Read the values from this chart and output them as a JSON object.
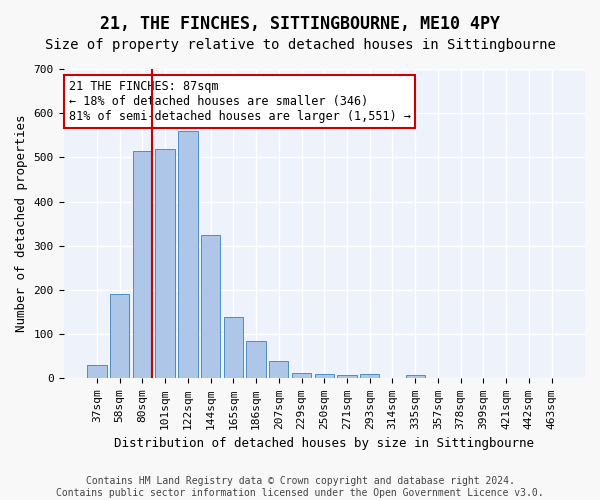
{
  "title": "21, THE FINCHES, SITTINGBOURNE, ME10 4PY",
  "subtitle": "Size of property relative to detached houses in Sittingbourne",
  "xlabel": "Distribution of detached houses by size in Sittingbourne",
  "ylabel": "Number of detached properties",
  "footer_line1": "Contains HM Land Registry data © Crown copyright and database right 2024.",
  "footer_line2": "Contains public sector information licensed under the Open Government Licence v3.0.",
  "bar_labels": [
    "37sqm",
    "58sqm",
    "80sqm",
    "101sqm",
    "122sqm",
    "144sqm",
    "165sqm",
    "186sqm",
    "207sqm",
    "229sqm",
    "250sqm",
    "271sqm",
    "293sqm",
    "314sqm",
    "335sqm",
    "357sqm",
    "378sqm",
    "399sqm",
    "421sqm",
    "442sqm",
    "463sqm"
  ],
  "bar_values": [
    30,
    190,
    515,
    520,
    560,
    325,
    140,
    85,
    40,
    13,
    10,
    8,
    10,
    0,
    7,
    0,
    0,
    0,
    0,
    0,
    0
  ],
  "bar_color": "#aec6e8",
  "bar_edge_color": "#4a90c4",
  "background_color": "#eef3fb",
  "grid_color": "#ffffff",
  "vline_x": 2.42,
  "vline_color": "#cc0000",
  "annotation_text": "21 THE FINCHES: 87sqm\n← 18% of detached houses are smaller (346)\n81% of semi-detached houses are larger (1,551) →",
  "annotation_box_color": "#ffffff",
  "annotation_box_edge": "#cc0000",
  "ylim": [
    0,
    700
  ],
  "yticks": [
    0,
    100,
    200,
    300,
    400,
    500,
    600,
    700
  ],
  "title_fontsize": 12,
  "subtitle_fontsize": 10,
  "xlabel_fontsize": 9,
  "ylabel_fontsize": 9,
  "tick_fontsize": 8,
  "annotation_fontsize": 8.5,
  "footer_fontsize": 7
}
